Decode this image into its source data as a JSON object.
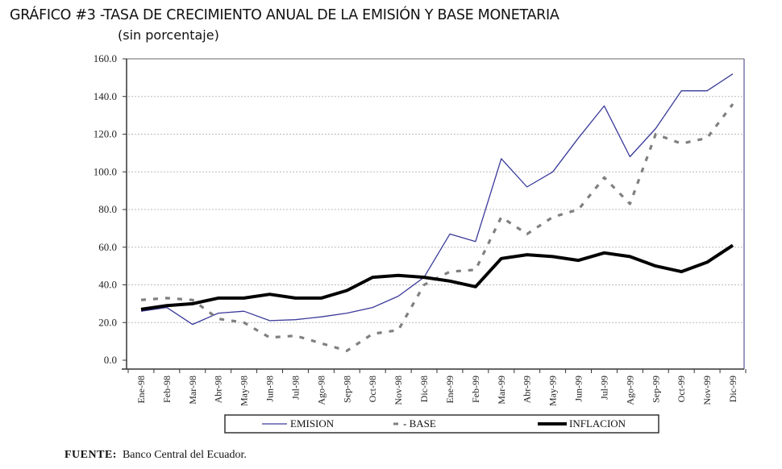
{
  "chart_data": {
    "type": "line",
    "title": "GRÁFICO #3 -TASA DE CRECIMIENTO ANUAL DE LA EMISIÓN Y BASE MONETARIA",
    "subtitle": "(sin porcentaje)",
    "xlabel": "",
    "ylabel": "",
    "ylim": [
      0,
      160
    ],
    "yticks": [
      "0.0",
      "20.0",
      "40.0",
      "60.0",
      "80.0",
      "100.0",
      "120.0",
      "140.0",
      "160.0"
    ],
    "ytick_values": [
      0,
      20,
      40,
      60,
      80,
      100,
      120,
      140,
      160
    ],
    "grid": true,
    "legend_position": "bottom",
    "categories": [
      "Ene-98",
      "Feb-98",
      "Mar-98",
      "Abr-98",
      "May-98",
      "Jun-98",
      "Jul-98",
      "Ago-98",
      "Sep-98",
      "Oct-98",
      "Nov-98",
      "Dic-98",
      "Ene-99",
      "Feb-99",
      "Mar-99",
      "Abr-99",
      "May-99",
      "Jun-99",
      "Jul-99",
      "Ago-99",
      "Sep-99",
      "Oct-99",
      "Nov-99",
      "Dic-99"
    ],
    "series": [
      {
        "name": "EMISIÓN",
        "style": "solid-thin",
        "color": "#3a3a9a",
        "values": [
          26,
          28,
          19,
          25,
          26,
          21,
          21.5,
          23,
          25,
          28,
          34,
          44,
          67,
          63,
          107,
          92,
          100,
          118,
          135,
          108,
          123,
          143,
          143,
          152
        ]
      },
      {
        "name": "BASE",
        "style": "dashed",
        "color": "#808080",
        "values": [
          32,
          33,
          32,
          22,
          20,
          12,
          13,
          9,
          5,
          14,
          16,
          40,
          47,
          48,
          76,
          67,
          76,
          80,
          97,
          83,
          120,
          115,
          118,
          136
        ]
      },
      {
        "name": "INFLACIÓN",
        "style": "solid-thick",
        "color": "#000000",
        "values": [
          27,
          29,
          30,
          33,
          33,
          35,
          33,
          33,
          37,
          44,
          45,
          44,
          42,
          39,
          54,
          56,
          55,
          53,
          57,
          55,
          50,
          47,
          52,
          61
        ]
      }
    ]
  },
  "legend": {
    "items": [
      {
        "label": "EMISION"
      },
      {
        "label": "- BASE"
      },
      {
        "label": "INFLACION"
      }
    ]
  },
  "source": {
    "label": "FUENTE:",
    "text": "Banco Central del Ecuador."
  }
}
